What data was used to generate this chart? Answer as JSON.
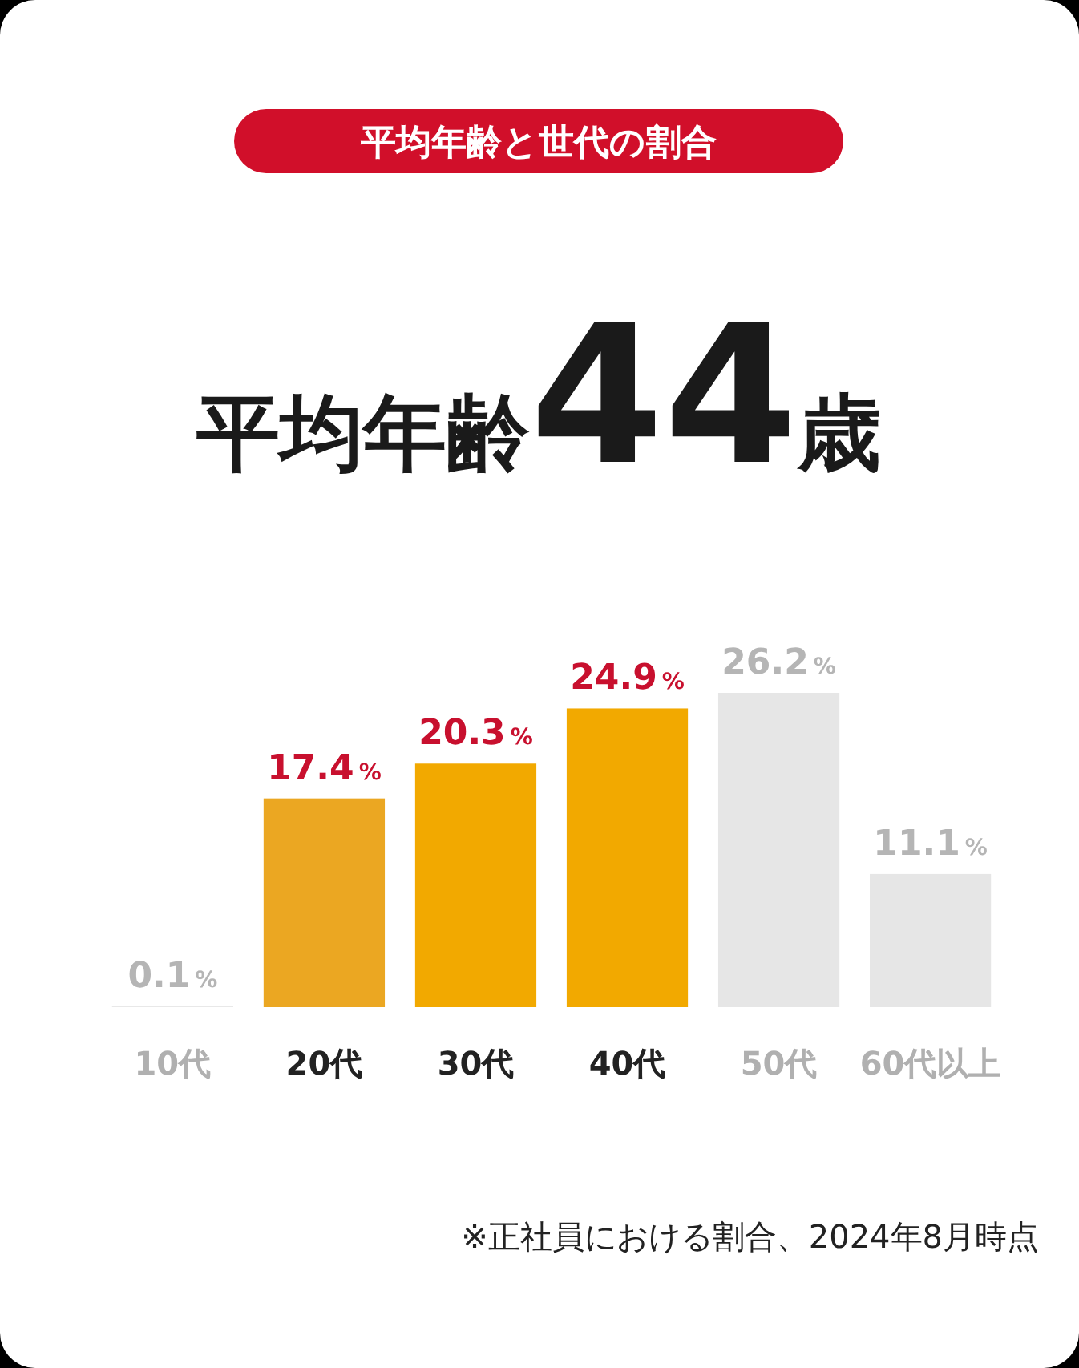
{
  "chart_data": {
    "type": "bar",
    "title": "平均年齢と世代の割合",
    "subtitle": "平均年齢44歳",
    "categories": [
      "10代",
      "20代",
      "30代",
      "40代",
      "50代",
      "60代以上"
    ],
    "values": [
      0.1,
      17.4,
      20.3,
      24.9,
      26.2,
      11.1
    ],
    "colors": [
      "#e8e8e8",
      "#eba722",
      "#f2a900",
      "#f2a900",
      "#e6e6e6",
      "#e6e6e6"
    ],
    "value_labels": [
      "0.1%",
      "17.4%",
      "20.3%",
      "24.9%",
      "26.2%",
      "11.1%"
    ],
    "annotations": [
      "※正社員における割合、2024年8月時点"
    ]
  }
}
